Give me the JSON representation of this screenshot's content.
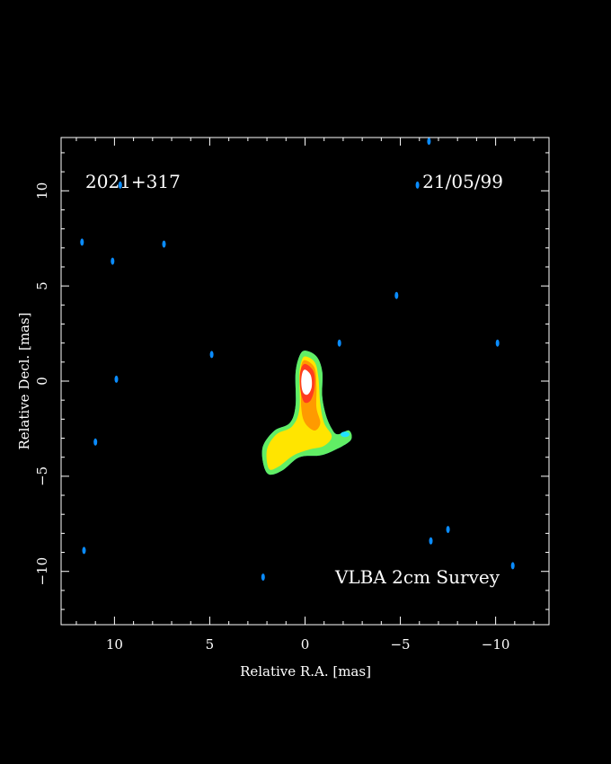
{
  "image": {
    "source_name": "2021+317",
    "date": "21/05/99",
    "survey": "VLBA 2cm Survey",
    "x_axis_label": "Relative R.A. [mas]",
    "y_axis_label": "Relative Decl. [mas]",
    "colors": {
      "background": "#000000",
      "frame": "#ffffff",
      "text": "#ffffff",
      "noise": "#0a8cff",
      "outer": "#22e3ff",
      "contour_green": "#6cf04a",
      "low": "#ffe500",
      "mid": "#ff9a00",
      "high": "#ff3c1e",
      "core": "#ffffff"
    }
  },
  "chart_data": {
    "type": "heatmap",
    "xlabel": "Relative R.A. [mas]",
    "ylabel": "Relative Decl. [mas]",
    "xlim": [
      12.8,
      -12.8
    ],
    "ylim": [
      -12.8,
      12.8
    ],
    "x_ticks": [
      10,
      5,
      0,
      -5,
      -10
    ],
    "x_tick_labels": [
      "10",
      "5",
      "0",
      "−5",
      "−10"
    ],
    "y_ticks": [
      10,
      5,
      0,
      -5,
      -10
    ],
    "y_tick_labels": [
      "10",
      "5",
      "0",
      "−5",
      "−10"
    ],
    "source": {
      "core_position": [
        0,
        0
      ],
      "outer_outline": [
        [
          0.0,
          1.6
        ],
        [
          -0.6,
          1.3
        ],
        [
          -0.9,
          0.5
        ],
        [
          -0.9,
          -0.8
        ],
        [
          -1.1,
          -1.8
        ],
        [
          -1.4,
          -2.5
        ],
        [
          -1.7,
          -2.8
        ],
        [
          -2.3,
          -2.6
        ],
        [
          -2.4,
          -3.1
        ],
        [
          -1.6,
          -3.6
        ],
        [
          -0.8,
          -3.9
        ],
        [
          0.3,
          -4.0
        ],
        [
          1.2,
          -4.7
        ],
        [
          1.9,
          -4.9
        ],
        [
          2.2,
          -4.3
        ],
        [
          2.2,
          -3.4
        ],
        [
          1.6,
          -2.6
        ],
        [
          0.8,
          -2.2
        ],
        [
          0.5,
          -1.3
        ],
        [
          0.5,
          0.4
        ],
        [
          0.3,
          1.3
        ]
      ],
      "yellow_outline": [
        [
          0.0,
          1.3
        ],
        [
          -0.5,
          1.0
        ],
        [
          -0.7,
          0.2
        ],
        [
          -0.8,
          -1.2
        ],
        [
          -1.0,
          -2.2
        ],
        [
          -1.4,
          -2.9
        ],
        [
          -1.0,
          -3.4
        ],
        [
          -0.2,
          -3.6
        ],
        [
          0.6,
          -3.9
        ],
        [
          1.4,
          -4.5
        ],
        [
          1.9,
          -4.6
        ],
        [
          2.0,
          -3.6
        ],
        [
          1.5,
          -2.8
        ],
        [
          0.7,
          -2.4
        ],
        [
          0.3,
          -1.5
        ],
        [
          0.3,
          0.3
        ],
        [
          0.2,
          1.0
        ]
      ],
      "orange_outline": [
        [
          0.0,
          1.1
        ],
        [
          -0.5,
          0.7
        ],
        [
          -0.6,
          -0.3
        ],
        [
          -0.6,
          -1.4
        ],
        [
          -0.8,
          -2.2
        ],
        [
          -0.5,
          -2.6
        ],
        [
          0.0,
          -2.2
        ],
        [
          0.2,
          -1.4
        ],
        [
          0.2,
          0.2
        ],
        [
          0.2,
          0.8
        ]
      ],
      "red_outline": [
        [
          0.0,
          0.9
        ],
        [
          -0.45,
          0.5
        ],
        [
          -0.5,
          -0.3
        ],
        [
          -0.3,
          -1.0
        ],
        [
          0.05,
          -1.1
        ],
        [
          0.25,
          -0.4
        ],
        [
          0.25,
          0.5
        ]
      ],
      "core_outline": [
        [
          0.0,
          0.6
        ],
        [
          -0.3,
          0.3
        ],
        [
          -0.35,
          -0.3
        ],
        [
          -0.15,
          -0.7
        ],
        [
          0.1,
          -0.6
        ],
        [
          0.2,
          -0.1
        ],
        [
          0.15,
          0.4
        ]
      ]
    },
    "noise_spots": [
      [
        11.7,
        7.3
      ],
      [
        10.1,
        6.3
      ],
      [
        7.4,
        7.2
      ],
      [
        9.9,
        0.1
      ],
      [
        11.0,
        -3.2
      ],
      [
        11.6,
        -8.9
      ],
      [
        4.9,
        1.4
      ],
      [
        2.2,
        -10.3
      ],
      [
        9.7,
        10.3
      ],
      [
        -1.8,
        2.0
      ],
      [
        -4.8,
        4.5
      ],
      [
        -5.9,
        10.3
      ],
      [
        -6.5,
        12.6
      ],
      [
        -10.1,
        2.0
      ],
      [
        -7.5,
        -7.8
      ],
      [
        -6.6,
        -8.4
      ],
      [
        -10.9,
        -9.7
      ]
    ]
  }
}
